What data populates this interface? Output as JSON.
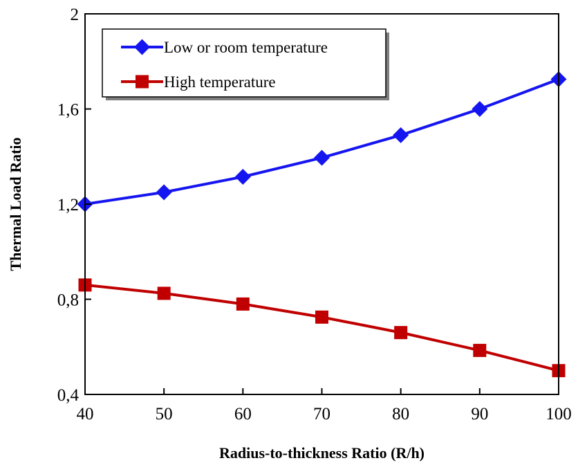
{
  "chart_data": {
    "type": "line",
    "title": "",
    "xlabel": "Radius-to-thickness Ratio (R/h)",
    "ylabel": "Thermal Load Ratio",
    "x": [
      40,
      50,
      60,
      70,
      80,
      90,
      100
    ],
    "x_tick_labels": [
      "40",
      "50",
      "60",
      "70",
      "80",
      "90",
      "100"
    ],
    "y_tick_values": [
      0.4,
      0.8,
      1.2,
      1.6,
      2.0
    ],
    "y_tick_labels": [
      "0,4",
      "0,8",
      "1,2",
      "1,6",
      "2"
    ],
    "xlim": [
      40,
      100
    ],
    "ylim": [
      0.4,
      2.0
    ],
    "grid": false,
    "legend_position": "top-left",
    "series": [
      {
        "name": "Low or room temperature",
        "color": "#1515f0",
        "marker": "diamond",
        "values": [
          1.2,
          1.25,
          1.315,
          1.395,
          1.49,
          1.6,
          1.725
        ]
      },
      {
        "name": "High temperature",
        "color": "#c00000",
        "marker": "square",
        "values": [
          0.86,
          0.825,
          0.78,
          0.725,
          0.66,
          0.585,
          0.5
        ]
      }
    ]
  }
}
